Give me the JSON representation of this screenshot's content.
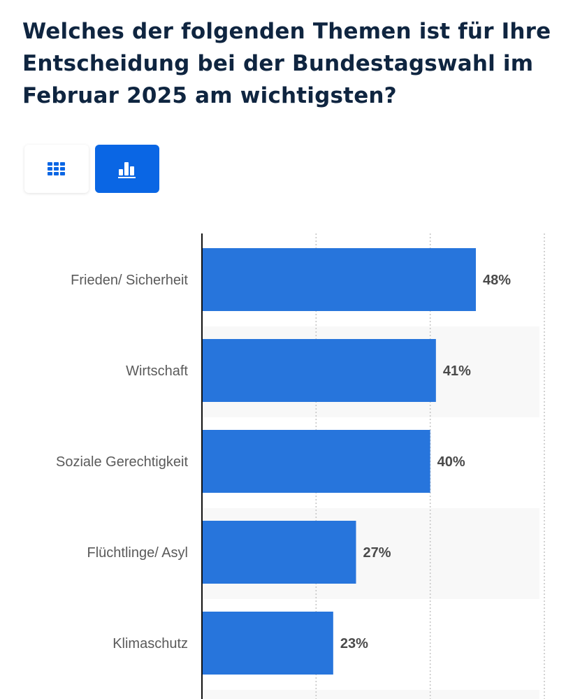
{
  "title": "Welches der folgenden Themen ist für Ihre Entscheidung bei der Bundestagswahl im Februar 2025 am wichtigsten?",
  "view_toggle": {
    "table_icon": "grid-table-icon",
    "chart_icon": "bar-chart-icon",
    "active": "chart",
    "active_color": "#0a66e4"
  },
  "chart_data": {
    "type": "bar",
    "orientation": "horizontal",
    "categories": [
      "Frieden/ Sicherheit",
      "Wirtschaft",
      "Soziale Gerechtigkeit",
      "Flüchtlinge/ Asyl",
      "Klimaschutz"
    ],
    "values": [
      48,
      41,
      40,
      27,
      23
    ],
    "value_labels": [
      "48%",
      "41%",
      "40%",
      "27%",
      "23%"
    ],
    "unit": "%",
    "xlim": [
      0,
      60
    ],
    "gridlines": [
      20,
      40,
      60
    ],
    "grid": true,
    "bar_color": "#2775dc",
    "stripe_color": "#f8f8f8"
  }
}
